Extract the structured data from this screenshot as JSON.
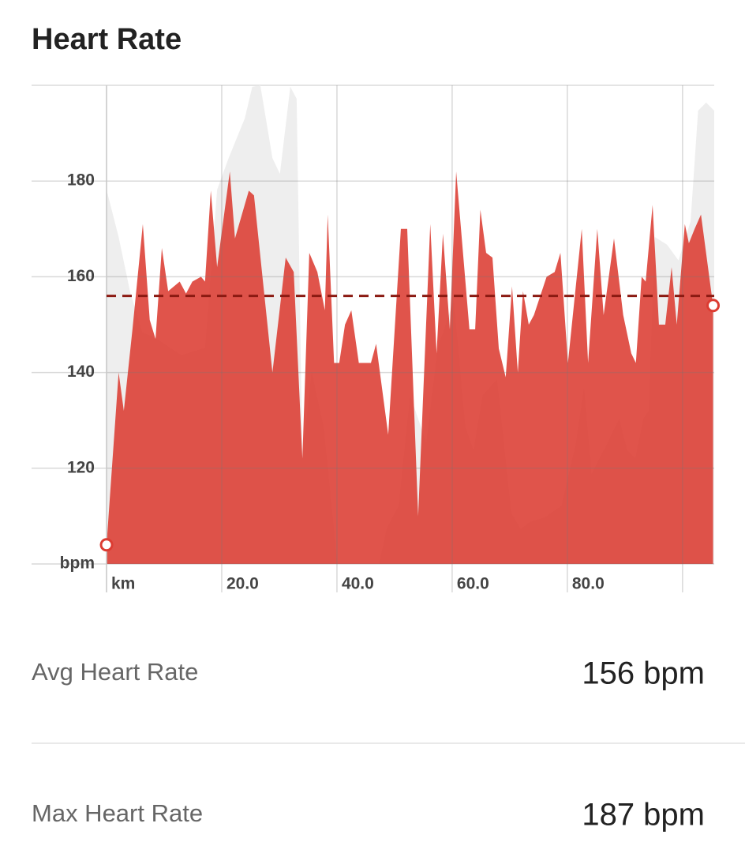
{
  "chart_data": {
    "type": "area",
    "title": "Heart Rate",
    "x": [
      0,
      2.1,
      3.0,
      4.5,
      6.3,
      7.5,
      8.5,
      9.6,
      10.7,
      12.7,
      13.8,
      14.9,
      16.4,
      17.1,
      18.1,
      19.2,
      21.4,
      22.3,
      24.7,
      25.6,
      28.8,
      31.1,
      32.5,
      34.0,
      35.2,
      36.6,
      37.9,
      38.4,
      39.5,
      40.4,
      41.4,
      42.5,
      43.8,
      45.9,
      46.8,
      48.9,
      51.1,
      52.2,
      54.1,
      56.2,
      57.3,
      58.4,
      59.6,
      60.7,
      63.0,
      64.0,
      64.9,
      65.9,
      67.0,
      68.1,
      69.3,
      70.4,
      71.4,
      72.3,
      73.3,
      74.2,
      76.4,
      77.8,
      78.8,
      80.1,
      82.5,
      83.6,
      85.2,
      86.3,
      88.1,
      89.7,
      91.1,
      91.9,
      92.9,
      93.6,
      94.8,
      95.9,
      97.0,
      98.1,
      99.0,
      100.4,
      101.1,
      102.1,
      103.2,
      105.3
    ],
    "series": [
      {
        "color": "#eeeeee",
        "axis": "y2",
        "x": [
          0,
          2.1,
          4.1,
          6.2,
          8.9,
          13.0,
          17.1,
          19.2,
          21.2,
          24.0,
          25.3,
          26.7,
          28.8,
          30.1,
          31.9,
          33.0,
          34.0,
          35.6,
          37.7,
          40.1,
          47.3,
          48.6,
          50.7,
          52.7,
          55.5,
          57.5,
          60.3,
          62.3,
          63.7,
          65.3,
          67.8,
          70.3,
          71.9,
          73.6,
          76.0,
          79.0,
          81.5,
          82.9,
          84.2,
          87.0,
          89.0,
          90.4,
          91.8,
          93.2,
          94.1,
          95.2,
          97.3,
          99.3,
          101.4,
          102.7,
          104.1,
          105.5
        ],
        "values": [
          78.2,
          68.3,
          56.8,
          48.5,
          46.9,
          43.6,
          45.2,
          78.2,
          84.8,
          93.1,
          99.7,
          100,
          84.8,
          81.5,
          99.7,
          97.2,
          22.1,
          40.3,
          28.7,
          0,
          0,
          7.3,
          12.2,
          35.3,
          25.4,
          45.2,
          55.1,
          28.7,
          23.8,
          35.3,
          38.6,
          10.6,
          7.3,
          8.9,
          9.7,
          12.2,
          25.4,
          37,
          18.8,
          25.4,
          30.4,
          23.8,
          22.1,
          30.4,
          32,
          68.3,
          66.7,
          63.4,
          71.6,
          94.7,
          96.4,
          94.7
        ]
      },
      {
        "color": "#dc3c32",
        "values": [
          104,
          140,
          132,
          149,
          171,
          151,
          147,
          166,
          157,
          159,
          156.5,
          159,
          160,
          159,
          178,
          162,
          182,
          168,
          178,
          177,
          140,
          164,
          161,
          122,
          165,
          161,
          153,
          173,
          142,
          142,
          150,
          153,
          142,
          142,
          146,
          127,
          170,
          170,
          110,
          171,
          144,
          169,
          149,
          182,
          149,
          149,
          174,
          165,
          164,
          145,
          139,
          158,
          140,
          157,
          150,
          152,
          160,
          161,
          165,
          142,
          170,
          142,
          170,
          152,
          168,
          152,
          144,
          142,
          160,
          159,
          175,
          150,
          150,
          162,
          150,
          171,
          167,
          170,
          173,
          154
        ]
      }
    ],
    "xlim": [
      0,
      105.5
    ],
    "ylim": [
      100,
      200
    ],
    "y2lim": [
      0,
      100
    ],
    "xticks": [
      {
        "value": 0,
        "label": "km"
      },
      {
        "value": 20,
        "label": "20.0"
      },
      {
        "value": 40,
        "label": "40.0"
      },
      {
        "value": 60,
        "label": "60.0"
      },
      {
        "value": 80,
        "label": "80.0"
      },
      {
        "value": 100,
        "label": null
      }
    ],
    "yticks": [
      {
        "value": 100,
        "label": "bpm"
      },
      120,
      140,
      160,
      180
    ],
    "avg_line": 156,
    "grid": true
  },
  "stats": [
    {
      "label": "Avg Heart Rate",
      "value": "156 bpm"
    },
    {
      "label": "Max Heart Rate",
      "value": "187 bpm"
    }
  ]
}
